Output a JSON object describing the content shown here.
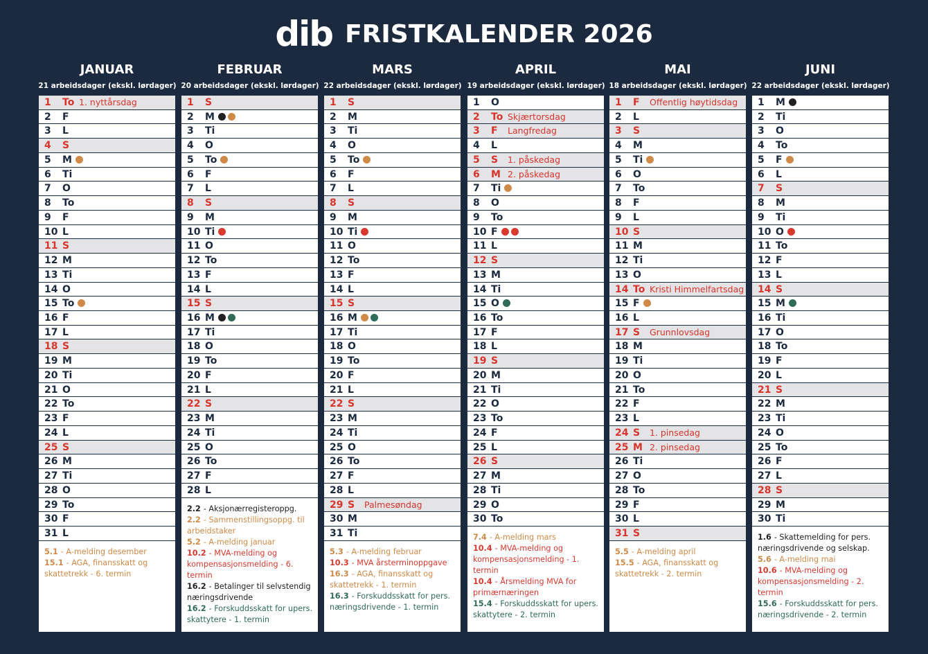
{
  "header": {
    "logo": "dib",
    "title": "FRISTKALENDER 2026"
  },
  "colors": {
    "red": "#d6342c",
    "gray": "#e4e4e6"
  },
  "months": [
    {
      "name": "JANUAR",
      "workdays": "21 arbeidsdager (ekskl. lørdager)",
      "days": [
        {
          "d": 1,
          "w": "To",
          "red": true,
          "note": "1. nyttårsdag"
        },
        {
          "d": 2,
          "w": "F"
        },
        {
          "d": 3,
          "w": "L"
        },
        {
          "d": 4,
          "w": "S",
          "red": true
        },
        {
          "d": 5,
          "w": "M",
          "dots": [
            "#cf8a48"
          ]
        },
        {
          "d": 6,
          "w": "Ti"
        },
        {
          "d": 7,
          "w": "O"
        },
        {
          "d": 8,
          "w": "To"
        },
        {
          "d": 9,
          "w": "F"
        },
        {
          "d": 10,
          "w": "L"
        },
        {
          "d": 11,
          "w": "S",
          "red": true
        },
        {
          "d": 12,
          "w": "M"
        },
        {
          "d": 13,
          "w": "Ti"
        },
        {
          "d": 14,
          "w": "O"
        },
        {
          "d": 15,
          "w": "To",
          "dots": [
            "#cf8a48"
          ]
        },
        {
          "d": 16,
          "w": "F"
        },
        {
          "d": 17,
          "w": "L"
        },
        {
          "d": 18,
          "w": "S",
          "red": true
        },
        {
          "d": 19,
          "w": "M"
        },
        {
          "d": 20,
          "w": "Ti"
        },
        {
          "d": 21,
          "w": "O"
        },
        {
          "d": 22,
          "w": "To"
        },
        {
          "d": 23,
          "w": "F"
        },
        {
          "d": 24,
          "w": "L"
        },
        {
          "d": 25,
          "w": "S",
          "red": true
        },
        {
          "d": 26,
          "w": "M"
        },
        {
          "d": 27,
          "w": "Ti"
        },
        {
          "d": 28,
          "w": "O"
        },
        {
          "d": 29,
          "w": "To"
        },
        {
          "d": 30,
          "w": "F"
        },
        {
          "d": 31,
          "w": "L"
        }
      ],
      "notes": [
        {
          "date": "5.1",
          "text": "- A-melding desember",
          "color": "#cf8a48"
        },
        {
          "date": "15.1",
          "text": "- AGA, finansskatt og skattetrekk - 6. termin",
          "color": "#cf8a48"
        }
      ]
    },
    {
      "name": "FEBRUAR",
      "workdays": "20 arbeidsdager (ekskl. lørdager)",
      "days": [
        {
          "d": 1,
          "w": "S",
          "red": true
        },
        {
          "d": 2,
          "w": "M",
          "dots": [
            "#222222",
            "#cf8a48"
          ]
        },
        {
          "d": 3,
          "w": "Ti"
        },
        {
          "d": 4,
          "w": "O"
        },
        {
          "d": 5,
          "w": "To",
          "dots": [
            "#cf8a48"
          ]
        },
        {
          "d": 6,
          "w": "F"
        },
        {
          "d": 7,
          "w": "L"
        },
        {
          "d": 8,
          "w": "S",
          "red": true
        },
        {
          "d": 9,
          "w": "M"
        },
        {
          "d": 10,
          "w": "Ti",
          "dots": [
            "#d93a30"
          ]
        },
        {
          "d": 11,
          "w": "O"
        },
        {
          "d": 12,
          "w": "To"
        },
        {
          "d": 13,
          "w": "F"
        },
        {
          "d": 14,
          "w": "L"
        },
        {
          "d": 15,
          "w": "S",
          "red": true
        },
        {
          "d": 16,
          "w": "M",
          "dots": [
            "#222222",
            "#2f6b58"
          ]
        },
        {
          "d": 17,
          "w": "Ti"
        },
        {
          "d": 18,
          "w": "O"
        },
        {
          "d": 19,
          "w": "To"
        },
        {
          "d": 20,
          "w": "F"
        },
        {
          "d": 21,
          "w": "L"
        },
        {
          "d": 22,
          "w": "S",
          "red": true
        },
        {
          "d": 23,
          "w": "M"
        },
        {
          "d": 24,
          "w": "Ti"
        },
        {
          "d": 25,
          "w": "O"
        },
        {
          "d": 26,
          "w": "To"
        },
        {
          "d": 27,
          "w": "F"
        },
        {
          "d": 28,
          "w": "L"
        }
      ],
      "notes": [
        {
          "date": "2.2",
          "text": "- Aksjonærregisteroppg.",
          "color": "#222222"
        },
        {
          "date": "2.2",
          "text": "- Sammenstillingsoppg. til arbeidstaker",
          "color": "#cf8a48"
        },
        {
          "date": "5.2",
          "text": "- A-melding januar",
          "color": "#cf8a48"
        },
        {
          "date": "10.2",
          "text": "- MVA-melding og kompensasjonsmelding - 6. termin",
          "color": "#d93a30"
        },
        {
          "date": "16.2",
          "text": "- Betalinger til selvstendig næringsdrivende",
          "color": "#222222"
        },
        {
          "date": "16.2",
          "text": "- Forskuddsskatt for upers. skattytere - 1. termin",
          "color": "#2f6b58"
        }
      ]
    },
    {
      "name": "MARS",
      "workdays": "22 arbeidsdager (ekskl. lørdager)",
      "days": [
        {
          "d": 1,
          "w": "S",
          "red": true
        },
        {
          "d": 2,
          "w": "M"
        },
        {
          "d": 3,
          "w": "Ti"
        },
        {
          "d": 4,
          "w": "O"
        },
        {
          "d": 5,
          "w": "To",
          "dots": [
            "#cf8a48"
          ]
        },
        {
          "d": 6,
          "w": "F"
        },
        {
          "d": 7,
          "w": "L"
        },
        {
          "d": 8,
          "w": "S",
          "red": true
        },
        {
          "d": 9,
          "w": "M"
        },
        {
          "d": 10,
          "w": "Ti",
          "dots": [
            "#d93a30"
          ]
        },
        {
          "d": 11,
          "w": "O"
        },
        {
          "d": 12,
          "w": "To"
        },
        {
          "d": 13,
          "w": "F"
        },
        {
          "d": 14,
          "w": "L"
        },
        {
          "d": 15,
          "w": "S",
          "red": true
        },
        {
          "d": 16,
          "w": "M",
          "dots": [
            "#cf8a48",
            "#2f6b58"
          ]
        },
        {
          "d": 17,
          "w": "Ti"
        },
        {
          "d": 18,
          "w": "O"
        },
        {
          "d": 19,
          "w": "To"
        },
        {
          "d": 20,
          "w": "F"
        },
        {
          "d": 21,
          "w": "L"
        },
        {
          "d": 22,
          "w": "S",
          "red": true
        },
        {
          "d": 23,
          "w": "M"
        },
        {
          "d": 24,
          "w": "Ti"
        },
        {
          "d": 25,
          "w": "O"
        },
        {
          "d": 26,
          "w": "To"
        },
        {
          "d": 27,
          "w": "F"
        },
        {
          "d": 28,
          "w": "L"
        },
        {
          "d": 29,
          "w": "S",
          "red": true,
          "note": "Palmesøndag"
        },
        {
          "d": 30,
          "w": "M"
        },
        {
          "d": 31,
          "w": "Ti"
        }
      ],
      "notes": [
        {
          "date": "5.3",
          "text": "- A-melding februar",
          "color": "#cf8a48"
        },
        {
          "date": "10.3",
          "text": "- MVA årsterminoppgave",
          "color": "#d93a30"
        },
        {
          "date": "16.3",
          "text": "- AGA, finansskatt og skattetrekk - 1. termin",
          "color": "#cf8a48"
        },
        {
          "date": "16.3",
          "text": "- Forskuddsskatt for pers. næringsdrivende - 1. termin",
          "color": "#2f6b58"
        }
      ]
    },
    {
      "name": "APRIL",
      "workdays": "19 arbeidsdager (ekskl. lørdager)",
      "days": [
        {
          "d": 1,
          "w": "O"
        },
        {
          "d": 2,
          "w": "To",
          "red": true,
          "note": "Skjærtorsdag"
        },
        {
          "d": 3,
          "w": "F",
          "red": true,
          "note": "Langfredag"
        },
        {
          "d": 4,
          "w": "L"
        },
        {
          "d": 5,
          "w": "S",
          "red": true,
          "note": "1. påskedag"
        },
        {
          "d": 6,
          "w": "M",
          "red": true,
          "note": "2. påskedag"
        },
        {
          "d": 7,
          "w": "Ti",
          "dots": [
            "#cf8a48"
          ]
        },
        {
          "d": 8,
          "w": "O"
        },
        {
          "d": 9,
          "w": "To"
        },
        {
          "d": 10,
          "w": "F",
          "dots": [
            "#d93a30",
            "#d93a30"
          ]
        },
        {
          "d": 11,
          "w": "L"
        },
        {
          "d": 12,
          "w": "S",
          "red": true
        },
        {
          "d": 13,
          "w": "M"
        },
        {
          "d": 14,
          "w": "Ti"
        },
        {
          "d": 15,
          "w": "O",
          "dots": [
            "#2f6b58"
          ]
        },
        {
          "d": 16,
          "w": "To"
        },
        {
          "d": 17,
          "w": "F"
        },
        {
          "d": 18,
          "w": "L"
        },
        {
          "d": 19,
          "w": "S",
          "red": true
        },
        {
          "d": 20,
          "w": "M"
        },
        {
          "d": 21,
          "w": "Ti"
        },
        {
          "d": 22,
          "w": "O"
        },
        {
          "d": 23,
          "w": "To"
        },
        {
          "d": 24,
          "w": "F"
        },
        {
          "d": 25,
          "w": "L"
        },
        {
          "d": 26,
          "w": "S",
          "red": true
        },
        {
          "d": 27,
          "w": "M"
        },
        {
          "d": 28,
          "w": "Ti"
        },
        {
          "d": 29,
          "w": "O"
        },
        {
          "d": 30,
          "w": "To"
        }
      ],
      "notes": [
        {
          "date": "7.4",
          "text": "- A-melding mars",
          "color": "#cf8a48"
        },
        {
          "date": "10.4",
          "text": "- MVA-melding og kompensasjonsmelding - 1. termin",
          "color": "#d93a30"
        },
        {
          "date": "10.4",
          "text": "- Årsmelding MVA for primærnæringen",
          "color": "#d93a30"
        },
        {
          "date": "15.4",
          "text": "- Forskuddsskatt for upers. skattytere - 2. termin",
          "color": "#2f6b58"
        }
      ]
    },
    {
      "name": "MAI",
      "workdays": "18 arbeidsdager (ekskl. lørdager)",
      "days": [
        {
          "d": 1,
          "w": "F",
          "red": true,
          "note": "Offentlig høytidsdag"
        },
        {
          "d": 2,
          "w": "L"
        },
        {
          "d": 3,
          "w": "S",
          "red": true
        },
        {
          "d": 4,
          "w": "M"
        },
        {
          "d": 5,
          "w": "Ti",
          "dots": [
            "#cf8a48"
          ]
        },
        {
          "d": 6,
          "w": "O"
        },
        {
          "d": 7,
          "w": "To"
        },
        {
          "d": 8,
          "w": "F"
        },
        {
          "d": 9,
          "w": "L"
        },
        {
          "d": 10,
          "w": "S",
          "red": true
        },
        {
          "d": 11,
          "w": "M"
        },
        {
          "d": 12,
          "w": "Ti"
        },
        {
          "d": 13,
          "w": "O"
        },
        {
          "d": 14,
          "w": "To",
          "red": true,
          "note": "Kristi Himmelfartsdag"
        },
        {
          "d": 15,
          "w": "F",
          "dots": [
            "#cf8a48"
          ]
        },
        {
          "d": 16,
          "w": "L"
        },
        {
          "d": 17,
          "w": "S",
          "red": true,
          "note": "Grunnlovsdag"
        },
        {
          "d": 18,
          "w": "M"
        },
        {
          "d": 19,
          "w": "Ti"
        },
        {
          "d": 20,
          "w": "O"
        },
        {
          "d": 21,
          "w": "To"
        },
        {
          "d": 22,
          "w": "F"
        },
        {
          "d": 23,
          "w": "L"
        },
        {
          "d": 24,
          "w": "S",
          "red": true,
          "note": "1. pinsedag"
        },
        {
          "d": 25,
          "w": "M",
          "red": true,
          "note": "2. pinsedag"
        },
        {
          "d": 26,
          "w": "Ti"
        },
        {
          "d": 27,
          "w": "O"
        },
        {
          "d": 28,
          "w": "To"
        },
        {
          "d": 29,
          "w": "F"
        },
        {
          "d": 30,
          "w": "L"
        },
        {
          "d": 31,
          "w": "S",
          "red": true
        }
      ],
      "notes": [
        {
          "date": "5.5",
          "text": "- A-melding april",
          "color": "#cf8a48"
        },
        {
          "date": "15.5",
          "text": "- AGA, finansskatt og skattetrekk - 2. termin",
          "color": "#cf8a48"
        }
      ]
    },
    {
      "name": "JUNI",
      "workdays": "22 arbeidsdager (ekskl. lørdager)",
      "days": [
        {
          "d": 1,
          "w": "M",
          "dots": [
            "#222222"
          ]
        },
        {
          "d": 2,
          "w": "Ti"
        },
        {
          "d": 3,
          "w": "O"
        },
        {
          "d": 4,
          "w": "To"
        },
        {
          "d": 5,
          "w": "F",
          "dots": [
            "#cf8a48"
          ]
        },
        {
          "d": 6,
          "w": "L"
        },
        {
          "d": 7,
          "w": "S",
          "red": true
        },
        {
          "d": 8,
          "w": "M"
        },
        {
          "d": 9,
          "w": "Ti"
        },
        {
          "d": 10,
          "w": "O",
          "dots": [
            "#d93a30"
          ]
        },
        {
          "d": 11,
          "w": "To"
        },
        {
          "d": 12,
          "w": "F"
        },
        {
          "d": 13,
          "w": "L"
        },
        {
          "d": 14,
          "w": "S",
          "red": true
        },
        {
          "d": 15,
          "w": "M",
          "dots": [
            "#2f6b58"
          ]
        },
        {
          "d": 16,
          "w": "Ti"
        },
        {
          "d": 17,
          "w": "O"
        },
        {
          "d": 18,
          "w": "To"
        },
        {
          "d": 19,
          "w": "F"
        },
        {
          "d": 20,
          "w": "L"
        },
        {
          "d": 21,
          "w": "S",
          "red": true
        },
        {
          "d": 22,
          "w": "M"
        },
        {
          "d": 23,
          "w": "Ti"
        },
        {
          "d": 24,
          "w": "O"
        },
        {
          "d": 25,
          "w": "To"
        },
        {
          "d": 26,
          "w": "F"
        },
        {
          "d": 27,
          "w": "L"
        },
        {
          "d": 28,
          "w": "S",
          "red": true
        },
        {
          "d": 29,
          "w": "M"
        },
        {
          "d": 30,
          "w": "Ti"
        }
      ],
      "notes": [
        {
          "date": "1.6",
          "text": "- Skattemelding for pers. næringsdrivende og selskap.",
          "color": "#222222"
        },
        {
          "date": "5.6",
          "text": "- A-melding mai",
          "color": "#cf8a48"
        },
        {
          "date": "10.6",
          "text": "- MVA-melding og kompensasjonsmelding - 2. termin",
          "color": "#d93a30"
        },
        {
          "date": "15.6",
          "text": "- Forskuddsskatt for pers. næringsdrivende - 2. termin",
          "color": "#2f6b58"
        }
      ]
    }
  ]
}
